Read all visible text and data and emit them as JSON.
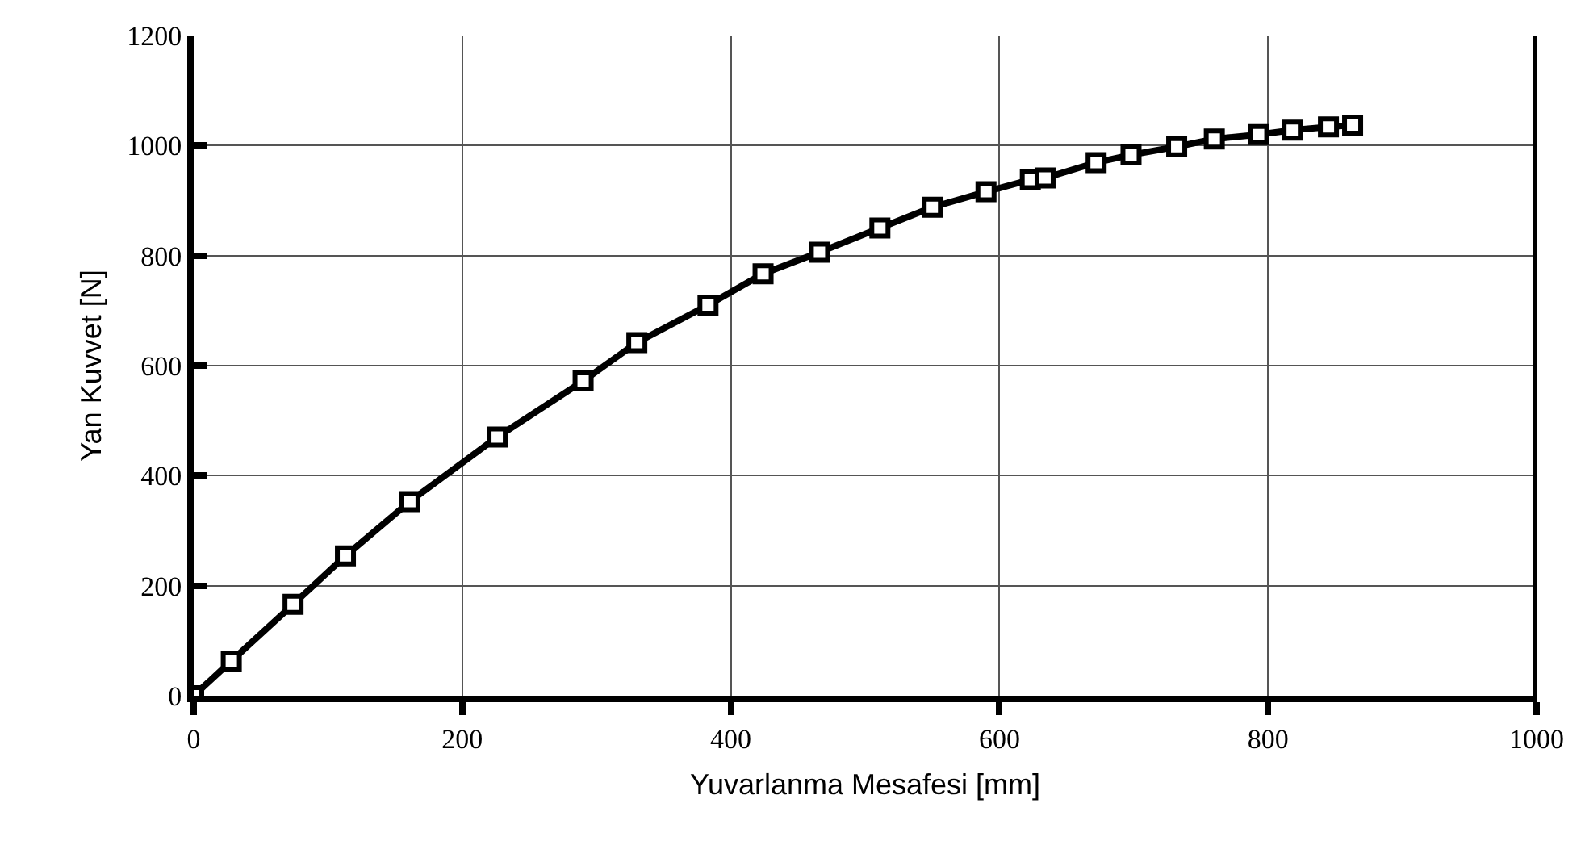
{
  "chart_data": {
    "type": "line",
    "xlabel": "Yuvarlanma Mesafesi [mm]",
    "ylabel": "Yan Kuvvet [N]",
    "x": [
      0,
      28,
      74,
      113,
      161,
      226,
      290,
      330,
      383,
      424,
      466,
      511,
      550,
      590,
      623,
      634,
      672,
      698,
      732,
      760,
      793,
      818,
      845,
      863
    ],
    "series": [
      {
        "color": "#000000",
        "values": [
          0,
          63,
          166,
          254,
          353,
          470,
          572,
          642,
          710,
          767,
          806,
          850,
          888,
          916,
          938,
          941,
          969,
          983,
          998,
          1012,
          1020,
          1028,
          1034,
          1037
        ]
      }
    ],
    "xlim": [
      0,
      1000
    ],
    "xticks": [
      0,
      200,
      400,
      600,
      800,
      1000
    ],
    "ylim": [
      0,
      1200
    ],
    "yticks": [
      0,
      200,
      400,
      600,
      800,
      1000,
      1200
    ],
    "grid": true,
    "marker": "square",
    "line_style": "solid"
  }
}
